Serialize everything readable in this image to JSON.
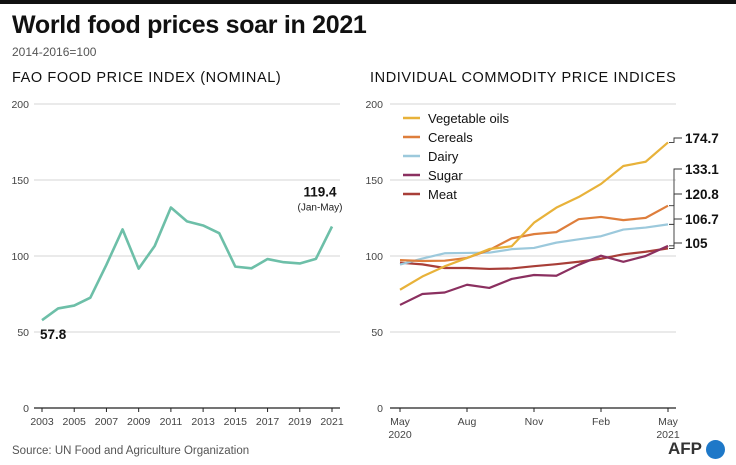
{
  "title": "World food prices soar in 2021",
  "subtitle": "2014-2016=100",
  "source": "Source: UN Food and Agriculture Organization",
  "logo_text": "AFP",
  "colors": {
    "vegetable_oils": "#e8b23a",
    "cereals": "#de7e3c",
    "dairy": "#9cc9dc",
    "sugar": "#8b3060",
    "meat": "#a83e38",
    "fao_index": "#6dbfa8"
  },
  "chart_data": [
    {
      "type": "line",
      "title": "FAO FOOD PRICE INDEX (NOMINAL)",
      "x": [
        2003,
        2004,
        2005,
        2006,
        2007,
        2008,
        2009,
        2010,
        2011,
        2012,
        2013,
        2014,
        2015,
        2016,
        2017,
        2018,
        2019,
        2020,
        2021
      ],
      "x_ticks": [
        "2003",
        "2005",
        "2007",
        "2009",
        "2011",
        "2013",
        "2015",
        "2017",
        "2019",
        "2021"
      ],
      "ylim": [
        0,
        200
      ],
      "y_ticks": [
        "0",
        "50",
        "100",
        "150",
        "200"
      ],
      "grid": true,
      "series": [
        {
          "values": [
            57.8,
            65.5,
            67.4,
            72.6,
            94.3,
            117.5,
            91.7,
            106.7,
            131.9,
            122.8,
            120.1,
            115.0,
            93.0,
            91.9,
            98.0,
            95.9,
            95.1,
            98.1,
            119.4
          ]
        }
      ],
      "annotations": [
        {
          "text": "57.8"
        },
        {
          "text": "119.4"
        },
        {
          "text": "(Jan-May)"
        }
      ]
    },
    {
      "type": "line",
      "title": "INDIVIDUAL COMMODITY PRICE INDICES",
      "x": [
        "May 2020",
        "Jun 2020",
        "Jul 2020",
        "Aug 2020",
        "Sep 2020",
        "Oct 2020",
        "Nov 2020",
        "Dec 2020",
        "Jan 2021",
        "Feb 2021",
        "Mar 2021",
        "Apr 2021",
        "May 2021"
      ],
      "x_ticks": [
        {
          "label": "May",
          "sub": "2020"
        },
        {
          "label": "Aug",
          "sub": ""
        },
        {
          "label": "Nov",
          "sub": ""
        },
        {
          "label": "Feb",
          "sub": ""
        },
        {
          "label": "May",
          "sub": "2021"
        }
      ],
      "ylim": [
        0,
        200
      ],
      "y_ticks": [
        "0",
        "50",
        "100",
        "150",
        "200"
      ],
      "grid": true,
      "legend_position": "top-left",
      "series": [
        {
          "name": "Vegetable oils",
          "key": "vegetable_oils",
          "end_label": "174.7",
          "values": [
            77.8,
            86.5,
            93.2,
            98.7,
            104.6,
            106.4,
            121.9,
            131.8,
            138.8,
            147.4,
            159.2,
            162.0,
            174.7
          ]
        },
        {
          "name": "Cereals",
          "key": "cereals",
          "end_label": "133.1",
          "values": [
            97.3,
            96.7,
            96.9,
            98.7,
            104.0,
            111.6,
            114.4,
            115.7,
            124.2,
            125.7,
            123.6,
            125.1,
            133.1
          ]
        },
        {
          "name": "Dairy",
          "key": "dairy",
          "end_label": "120.8",
          "values": [
            94.4,
            98.3,
            101.8,
            102.0,
            102.2,
            104.5,
            105.3,
            108.8,
            111.0,
            113.0,
            117.4,
            118.7,
            120.8
          ]
        },
        {
          "name": "Sugar",
          "key": "sugar",
          "end_label": "106.7",
          "values": [
            67.8,
            75.0,
            76.0,
            81.1,
            79.0,
            84.9,
            87.5,
            87.0,
            94.2,
            100.2,
            96.2,
            100.0,
            106.7
          ]
        },
        {
          "name": "Meat",
          "key": "meat",
          "end_label": "105",
          "values": [
            95.6,
            94.5,
            92.1,
            92.1,
            91.5,
            91.8,
            93.3,
            94.6,
            96.2,
            98.2,
            101.1,
            102.8,
            105.0
          ]
        }
      ]
    }
  ]
}
